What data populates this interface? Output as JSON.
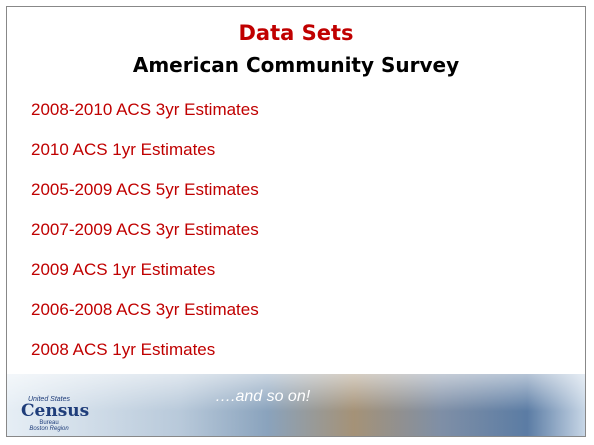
{
  "header": {
    "title": "Data Sets",
    "subtitle": "American Community Survey"
  },
  "list": {
    "items": [
      "2008-2010 ACS 3yr Estimates",
      "2010 ACS 1yr Estimates",
      "2005-2009 ACS 5yr Estimates",
      "2007-2009 ACS 3yr Estimates",
      "2009 ACS 1yr Estimates",
      "2006-2008 ACS 3yr Estimates",
      "2008 ACS 1yr Estimates"
    ]
  },
  "footer": {
    "note": "….and so on!",
    "logo": {
      "top": "United States",
      "name": "Census",
      "sub": "Bureau",
      "region": "Boston Region"
    }
  }
}
